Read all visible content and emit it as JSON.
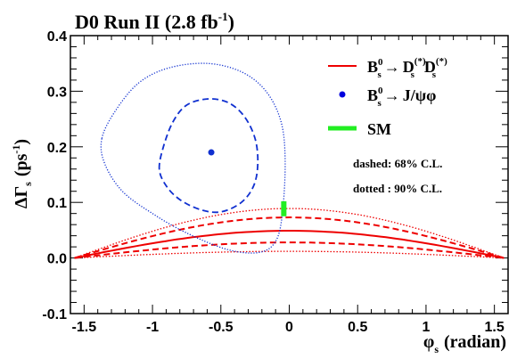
{
  "chart_data": {
    "type": "scatter",
    "title": "D0 Run II (2.8 fb",
    "title_sup": "-1",
    "title_end": ")",
    "xlabel": "φ",
    "xlabel_sub": "s",
    "xlabel_unit": "(radian)",
    "ylabel": "ΔΓ",
    "ylabel_sub": "s",
    "ylabel_unit_open": "(ps",
    "ylabel_unit_sup": "-1",
    "ylabel_unit_close": ")",
    "xlim": [
      -1.6,
      1.6
    ],
    "ylim": [
      -0.1,
      0.4
    ],
    "xticks": [
      -1.5,
      -1,
      -0.5,
      0,
      0.5,
      1,
      1.5
    ],
    "xtick_labels": [
      "-1.5",
      "-1",
      "-0.5",
      "0",
      "0.5",
      "1",
      "1.5"
    ],
    "yticks": [
      -0.1,
      0.0,
      0.1,
      0.2,
      0.3,
      0.4
    ],
    "ytick_labels": [
      "-0.1",
      "0.0",
      "0.1",
      "0.2",
      "0.3",
      "0.4"
    ],
    "grid": false,
    "legend_position": "top-right",
    "legend": [
      {
        "label_B": "B",
        "label_sub": "s",
        "label_sup": "0",
        "label_arrow": "→",
        "label_D1": "D",
        "label_D1_sub": "s",
        "label_D1_sup": "(*)",
        "label_D2": "D",
        "label_D2_sub": "s",
        "label_D2_sup": "(*)",
        "color": "#ee0000",
        "style": "line"
      },
      {
        "label_B": "B",
        "label_sub": "s",
        "label_sup": "0",
        "label_arrow": "→",
        "label_rest": "J/ψφ",
        "color": "#0000dd",
        "style": "marker"
      },
      {
        "label": "SM",
        "color": "#22ee22",
        "style": "thick-line"
      }
    ],
    "annotations": [
      "dashed: 68% C.L.",
      "dotted : 90% C.L."
    ],
    "colors": {
      "ds": "#ee0000",
      "jpsi": "#1030d0",
      "sm": "#22ee22"
    },
    "jpsi_point": {
      "x": -0.57,
      "y": 0.19
    },
    "sm_point": {
      "x": -0.04,
      "y_low": 0.075,
      "y_high": 0.102
    },
    "ds_bands": {
      "central_peak": 0.049,
      "dashed_inner_peak": 0.028,
      "dashed_outer_peak": 0.073,
      "dotted_inner_peak": 0.012,
      "dotted_outer_peak": 0.089,
      "x_range": [
        -1.57,
        1.57
      ]
    },
    "jpsi_contour_68": [
      [
        -0.95,
        0.16
      ],
      [
        -0.92,
        0.2
      ],
      [
        -0.85,
        0.245
      ],
      [
        -0.75,
        0.275
      ],
      [
        -0.6,
        0.286
      ],
      [
        -0.45,
        0.28
      ],
      [
        -0.33,
        0.255
      ],
      [
        -0.25,
        0.215
      ],
      [
        -0.23,
        0.17
      ],
      [
        -0.26,
        0.13
      ],
      [
        -0.35,
        0.1
      ],
      [
        -0.5,
        0.083
      ],
      [
        -0.65,
        0.087
      ],
      [
        -0.8,
        0.105
      ],
      [
        -0.9,
        0.13
      ]
    ],
    "jpsi_contour_90": [
      [
        -1.37,
        0.215
      ],
      [
        -1.27,
        0.265
      ],
      [
        -1.1,
        0.315
      ],
      [
        -0.88,
        0.342
      ],
      [
        -0.6,
        0.35
      ],
      [
        -0.35,
        0.335
      ],
      [
        -0.17,
        0.3
      ],
      [
        -0.06,
        0.245
      ],
      [
        -0.03,
        0.175
      ],
      [
        -0.05,
        0.08
      ],
      [
        -0.1,
        0.03
      ],
      [
        -0.22,
        0.01
      ],
      [
        -0.45,
        0.015
      ],
      [
        -0.75,
        0.045
      ],
      [
        -1.0,
        0.08
      ],
      [
        -1.22,
        0.12
      ],
      [
        -1.35,
        0.17
      ]
    ]
  }
}
